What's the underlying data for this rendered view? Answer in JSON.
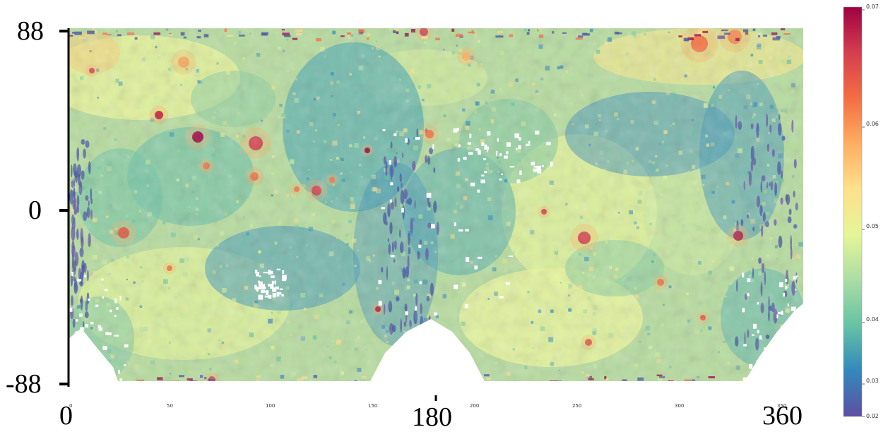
{
  "map": {
    "projection": "equirectangular",
    "longitude_range": [
      0,
      360
    ],
    "latitude_range": [
      -88,
      88
    ],
    "colormap": "Spectral_r",
    "colormap_stops": [
      "#5e4fa2",
      "#3288bd",
      "#66c2a5",
      "#abdda4",
      "#e6f598",
      "#fee08b",
      "#fdae61",
      "#f46d43",
      "#d53e4f",
      "#9e0142"
    ],
    "no_data_color": "#ffffff"
  },
  "axes": {
    "y_big_labels": [
      "88",
      "0",
      "-88"
    ],
    "x_big_labels": [
      "0",
      "180",
      "360"
    ],
    "x_small_ticks": [
      "0",
      "50",
      "100",
      "150",
      "200",
      "250",
      "300",
      "350"
    ]
  },
  "colorbar": {
    "min": 0.02,
    "max": 0.07,
    "ticks": [
      "0.07",
      "0.06",
      "0.05",
      "0.04",
      "0.03",
      "0.02"
    ]
  }
}
